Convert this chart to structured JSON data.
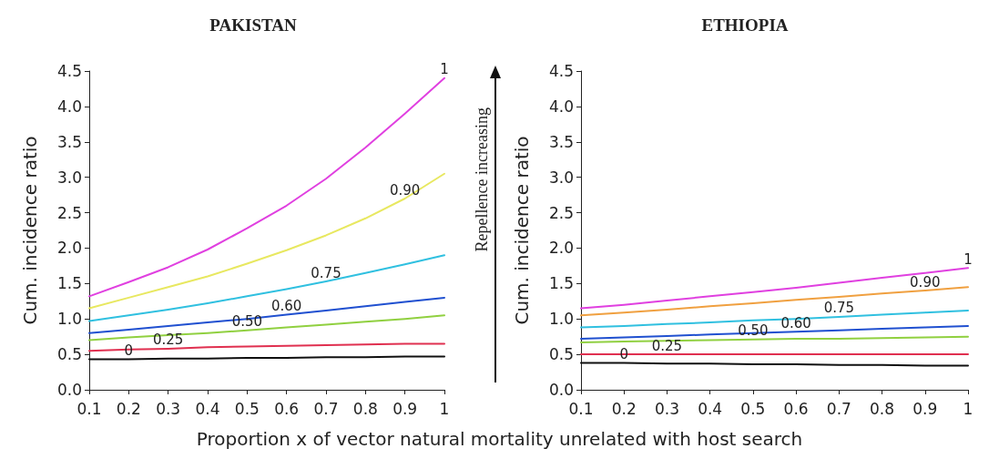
{
  "chart_data": [
    {
      "type": "line",
      "title": "PAKISTAN",
      "ylabel": "Cum. incidence ratio",
      "xlabel": "Proportion x of vector natural mortality unrelated with host search",
      "annotations": [
        "Repellence increasing"
      ],
      "x": [
        0.1,
        0.2,
        0.3,
        0.4,
        0.5,
        0.6,
        0.7,
        0.8,
        0.9,
        1
      ],
      "xlim": [
        0.1,
        1
      ],
      "xticks": [
        0.1,
        0.2,
        0.3,
        0.4,
        0.5,
        0.6,
        0.7,
        0.8,
        0.9,
        1
      ],
      "ylim": [
        0,
        4.5
      ],
      "yticks": [
        {
          "value": 0,
          "label": "0.0"
        },
        0.5,
        {
          "value": 1,
          "label": "1.0"
        },
        1.5,
        {
          "value": 2,
          "label": "2.0"
        },
        2.5,
        {
          "value": 3,
          "label": "3.0"
        },
        3.5,
        {
          "value": 4,
          "label": "4.0"
        },
        4.5
      ],
      "grid": false,
      "legend": false,
      "marker": "none",
      "line_style": "solid",
      "series": [
        {
          "name": "0",
          "color": "#101010",
          "values": [
            0.43,
            0.43,
            0.44,
            0.44,
            0.45,
            0.45,
            0.46,
            0.46,
            0.47,
            0.47
          ]
        },
        {
          "name": "0.25",
          "color": "#e03050",
          "values": [
            0.55,
            0.57,
            0.58,
            0.6,
            0.61,
            0.62,
            0.63,
            0.64,
            0.65,
            0.65
          ]
        },
        {
          "name": "0.50",
          "color": "#90d040",
          "values": [
            0.7,
            0.74,
            0.77,
            0.8,
            0.84,
            0.88,
            0.92,
            0.96,
            1.0,
            1.05
          ]
        },
        {
          "name": "0.60",
          "color": "#2050d0",
          "values": [
            0.8,
            0.85,
            0.9,
            0.95,
            1.0,
            1.06,
            1.12,
            1.18,
            1.24,
            1.3
          ]
        },
        {
          "name": "0.75",
          "color": "#30c0e0",
          "values": [
            0.97,
            1.05,
            1.13,
            1.22,
            1.32,
            1.42,
            1.53,
            1.65,
            1.77,
            1.9
          ]
        },
        {
          "name": "0.90",
          "color": "#e8e860",
          "values": [
            1.15,
            1.3,
            1.45,
            1.6,
            1.78,
            1.97,
            2.18,
            2.42,
            2.7,
            3.05
          ]
        },
        {
          "name": "1",
          "color": "#e040e0",
          "values": [
            1.32,
            1.52,
            1.73,
            1.98,
            2.28,
            2.6,
            2.98,
            3.42,
            3.9,
            4.4
          ]
        }
      ]
    },
    {
      "type": "line",
      "title": "ETHIOPIA",
      "ylabel": "Cum. incidence ratio",
      "x": [
        0.1,
        0.2,
        0.3,
        0.4,
        0.5,
        0.6,
        0.7,
        0.8,
        0.9,
        1
      ],
      "xlim": [
        0.1,
        1
      ],
      "xticks": [
        0.1,
        0.2,
        0.3,
        0.4,
        0.5,
        0.6,
        0.7,
        0.8,
        0.9,
        1
      ],
      "ylim": [
        0,
        4.5
      ],
      "yticks": [
        {
          "value": 0,
          "label": "0.0"
        },
        0.5,
        {
          "value": 1,
          "label": "1.0"
        },
        1.5,
        {
          "value": 2,
          "label": "2.0"
        },
        2.5,
        {
          "value": 3,
          "label": "3.0"
        },
        3.5,
        {
          "value": 4,
          "label": "4.0"
        },
        4.5
      ],
      "grid": false,
      "legend": false,
      "marker": "none",
      "line_style": "solid",
      "series": [
        {
          "name": "0",
          "color": "#101010",
          "values": [
            0.38,
            0.38,
            0.37,
            0.37,
            0.36,
            0.36,
            0.35,
            0.35,
            0.34,
            0.34
          ]
        },
        {
          "name": "0.25",
          "color": "#e03050",
          "values": [
            0.5,
            0.5,
            0.5,
            0.5,
            0.5,
            0.5,
            0.5,
            0.5,
            0.5,
            0.5
          ]
        },
        {
          "name": "0.50",
          "color": "#90d040",
          "values": [
            0.67,
            0.68,
            0.69,
            0.7,
            0.71,
            0.72,
            0.72,
            0.73,
            0.74,
            0.75
          ]
        },
        {
          "name": "0.60",
          "color": "#2050d0",
          "values": [
            0.72,
            0.74,
            0.76,
            0.78,
            0.8,
            0.82,
            0.84,
            0.86,
            0.88,
            0.9
          ]
        },
        {
          "name": "0.75",
          "color": "#30c0e0",
          "values": [
            0.88,
            0.9,
            0.93,
            0.95,
            0.98,
            1.0,
            1.03,
            1.06,
            1.09,
            1.12
          ]
        },
        {
          "name": "0.90",
          "color": "#f0a040",
          "values": [
            1.05,
            1.09,
            1.13,
            1.18,
            1.22,
            1.27,
            1.31,
            1.36,
            1.4,
            1.45
          ]
        },
        {
          "name": "1",
          "color": "#e040e0",
          "values": [
            1.15,
            1.2,
            1.26,
            1.32,
            1.38,
            1.44,
            1.51,
            1.58,
            1.65,
            1.72
          ]
        }
      ]
    }
  ]
}
